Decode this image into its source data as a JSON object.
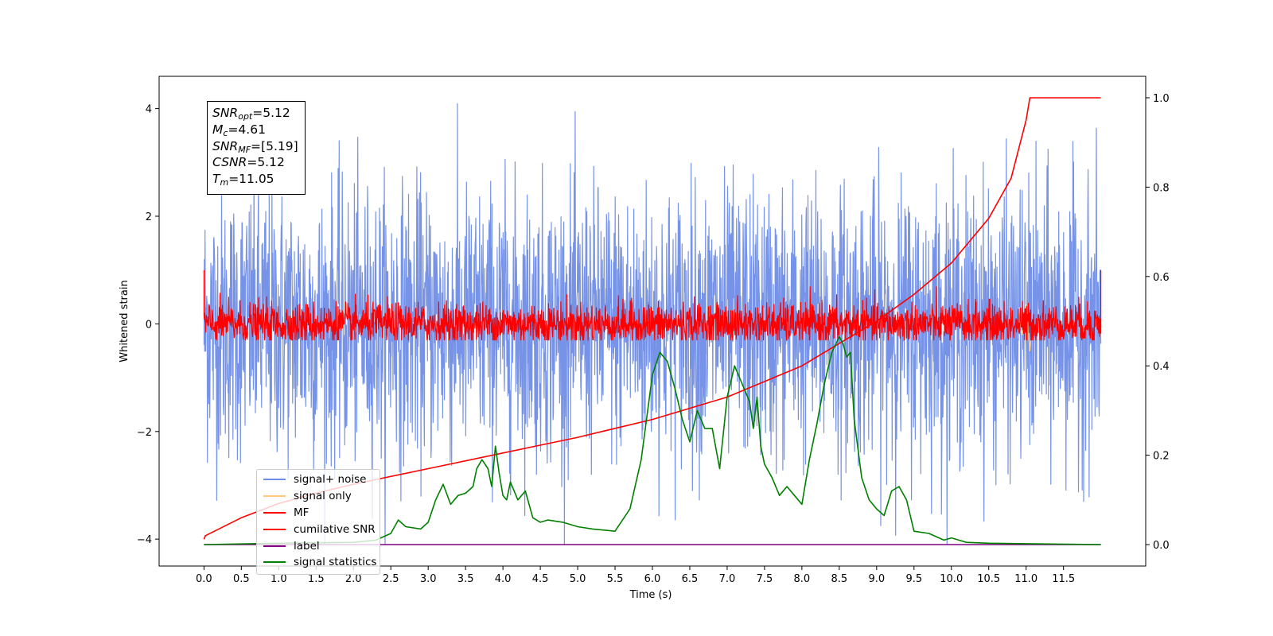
{
  "chart_data": {
    "type": "line",
    "title": "",
    "xlabel": "Time (s)",
    "ylabel": "Whitened strain",
    "ylabel_right": "",
    "xlim": [
      -0.6,
      12.6
    ],
    "ylim": [
      -4.5,
      4.6
    ],
    "ylim_right": [
      -0.048,
      1.048
    ],
    "grid": false,
    "legend_position": "lower-left",
    "x_ticks": [
      "0.0",
      "0.5",
      "1.0",
      "1.5",
      "2.0",
      "2.5",
      "3.0",
      "3.5",
      "4.0",
      "4.5",
      "5.0",
      "5.5",
      "6.0",
      "6.5",
      "7.0",
      "7.5",
      "8.0",
      "8.5",
      "9.0",
      "9.5",
      "10.0",
      "10.5",
      "11.0",
      "11.5"
    ],
    "y_ticks": [
      "−4",
      "−2",
      "0",
      "2",
      "4"
    ],
    "y_ticks_right": [
      "0.0",
      "0.2",
      "0.4",
      "0.6",
      "0.8",
      "1.0"
    ],
    "annotation": [
      {
        "sym": "SNR",
        "sub": "opt",
        "text": "=5.12"
      },
      {
        "sym": "M",
        "sub": "c",
        "text": "=4.61"
      },
      {
        "sym": "SNR",
        "sub": "MF",
        "text": "=[5.19]"
      },
      {
        "sym": "CSNR",
        "sub": "",
        "text": "=5.12"
      },
      {
        "sym": "T",
        "sub": "m",
        "text": "=11.05"
      }
    ],
    "series": [
      {
        "name": "signal+ noise",
        "color": "#6f8de6",
        "axis": "left",
        "description_range": [
          -4.1,
          4.2
        ],
        "x_start": 0.0,
        "x_end": 12.0
      },
      {
        "name": "signal only",
        "color": "#ffc87a",
        "axis": "left",
        "x": [
          10.9,
          10.95,
          11.0,
          11.05,
          11.08
        ],
        "y": [
          0.2,
          -0.2,
          0.35,
          -0.5,
          0.0
        ]
      },
      {
        "name": "MF",
        "color": "#ff0000",
        "axis": "left",
        "x_start": 0.0,
        "x_end": 12.0,
        "center": 0.0,
        "amplitude": 0.35
      },
      {
        "name": "cumilative SNR",
        "color": "#ff0000",
        "axis": "right",
        "x": [
          0.0,
          0.02,
          0.5,
          1.0,
          1.5,
          2.0,
          3.0,
          4.0,
          5.0,
          6.0,
          7.0,
          8.0,
          8.5,
          9.0,
          9.5,
          10.0,
          10.5,
          10.8,
          11.0,
          11.05,
          12.0
        ],
        "y": [
          0.012,
          0.02,
          0.06,
          0.092,
          0.115,
          0.135,
          0.17,
          0.205,
          0.24,
          0.28,
          0.33,
          0.4,
          0.45,
          0.5,
          0.56,
          0.63,
          0.73,
          0.82,
          0.95,
          1.0,
          1.0
        ]
      },
      {
        "name": "label",
        "color": "#800080",
        "axis": "right",
        "x": [
          0.0,
          12.0
        ],
        "y": [
          0.0,
          0.0
        ]
      },
      {
        "name": "signal statistics",
        "color": "#008000",
        "axis": "right",
        "x": [
          0.0,
          1.0,
          2.0,
          2.3,
          2.5,
          2.6,
          2.7,
          2.9,
          3.0,
          3.1,
          3.2,
          3.3,
          3.4,
          3.5,
          3.6,
          3.65,
          3.72,
          3.8,
          3.85,
          3.9,
          3.95,
          4.0,
          4.05,
          4.1,
          4.2,
          4.3,
          4.4,
          4.5,
          4.6,
          4.8,
          5.0,
          5.2,
          5.5,
          5.7,
          5.85,
          6.0,
          6.1,
          6.2,
          6.3,
          6.4,
          6.5,
          6.6,
          6.7,
          6.8,
          6.9,
          7.0,
          7.1,
          7.2,
          7.3,
          7.35,
          7.4,
          7.45,
          7.5,
          7.6,
          7.7,
          7.8,
          7.9,
          8.0,
          8.1,
          8.2,
          8.3,
          8.4,
          8.5,
          8.55,
          8.6,
          8.65,
          8.7,
          8.8,
          8.9,
          9.0,
          9.1,
          9.2,
          9.3,
          9.4,
          9.5,
          9.7,
          9.9,
          10.0,
          10.1,
          10.2,
          10.5,
          11.0,
          12.0
        ],
        "y": [
          0.0,
          0.003,
          0.005,
          0.01,
          0.025,
          0.055,
          0.04,
          0.035,
          0.05,
          0.1,
          0.135,
          0.09,
          0.11,
          0.115,
          0.13,
          0.17,
          0.19,
          0.17,
          0.13,
          0.22,
          0.16,
          0.11,
          0.1,
          0.14,
          0.1,
          0.12,
          0.06,
          0.05,
          0.055,
          0.05,
          0.04,
          0.035,
          0.03,
          0.08,
          0.19,
          0.38,
          0.43,
          0.41,
          0.35,
          0.28,
          0.23,
          0.3,
          0.26,
          0.26,
          0.17,
          0.33,
          0.4,
          0.36,
          0.32,
          0.26,
          0.33,
          0.22,
          0.18,
          0.15,
          0.11,
          0.13,
          0.11,
          0.09,
          0.19,
          0.27,
          0.36,
          0.43,
          0.465,
          0.45,
          0.42,
          0.43,
          0.28,
          0.15,
          0.1,
          0.08,
          0.065,
          0.12,
          0.13,
          0.1,
          0.03,
          0.025,
          0.01,
          0.015,
          0.01,
          0.005,
          0.003,
          0.002,
          0.0
        ]
      }
    ]
  }
}
